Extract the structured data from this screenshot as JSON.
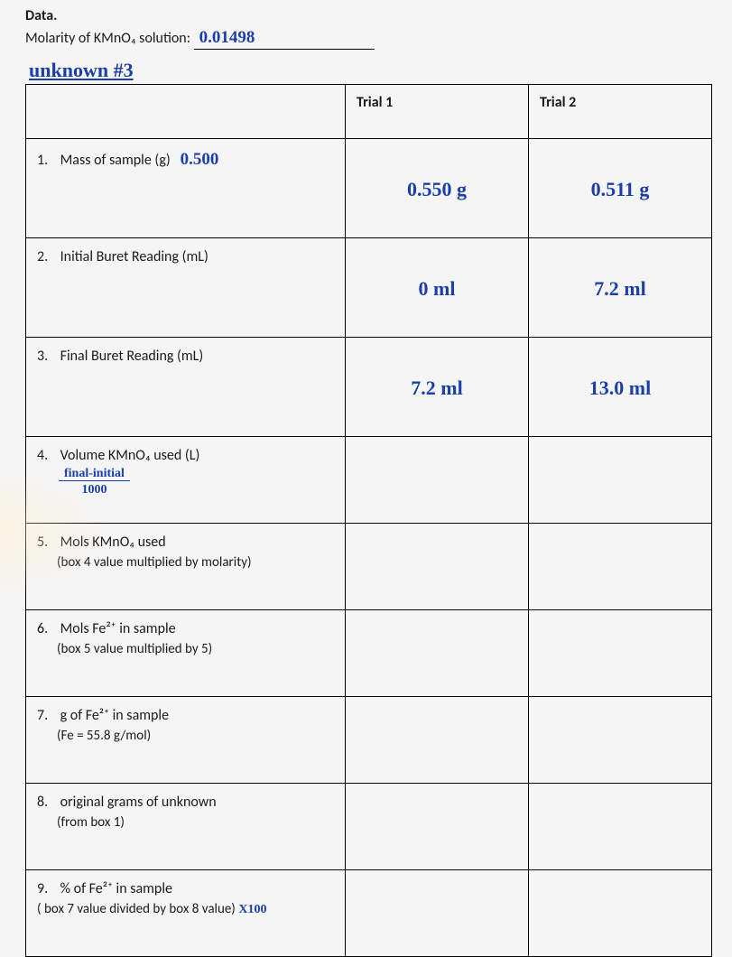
{
  "header": {
    "data_label": "Data.",
    "molarity_label": "Molarity of KMnO₄ solution:",
    "molarity_value": "0.01498",
    "unknown_title": "unknown #3"
  },
  "columns": {
    "trial1": "Trial 1",
    "trial2": "Trial 2"
  },
  "rows": {
    "r1": {
      "num": "1.",
      "label": "Mass of sample (g)",
      "annot": "0.500",
      "t1": "0.550 g",
      "t2": "0.511 g"
    },
    "r2": {
      "num": "2.",
      "label": "Initial Buret Reading (mL)",
      "t1": "0 ml",
      "t2": "7.2 ml"
    },
    "r3": {
      "num": "3.",
      "label": "Final Buret Reading (mL)",
      "t1": "7.2 ml",
      "t2": "13.0 ml"
    },
    "r4": {
      "num": "4.",
      "label": "Volume KMnO₄ used (L)",
      "frac_top": "final-initial",
      "frac_bot": "1000",
      "t1": "",
      "t2": ""
    },
    "r5": {
      "num": "5.",
      "label": "Mols KMnO₄ used",
      "sub": "(box 4 value multiplied by molarity)",
      "t1": "",
      "t2": ""
    },
    "r6": {
      "num": "6.",
      "label_html": "Mols Fe²⁺ in sample",
      "sub": "(box 5 value multiplied by 5)",
      "t1": "",
      "t2": ""
    },
    "r7": {
      "num": "7.",
      "label_html": "g of Fe²⁺ in sample",
      "sub": "(Fe = 55.8 g/mol)",
      "t1": "",
      "t2": ""
    },
    "r8": {
      "num": "8.",
      "label": "original grams of unknown",
      "sub": "(from box 1)",
      "t1": "",
      "t2": ""
    },
    "r9": {
      "num": "9.",
      "label_html": "% of Fe²⁺ in sample",
      "sub_prefix": "( box 7 value divided by box 8 value)",
      "sub_hand": " X100",
      "t1": "",
      "t2": ""
    }
  },
  "style": {
    "handwriting_color": "#1b3ea8",
    "border_color": "#000000",
    "background": "#f5f5f5",
    "font_body": "Calibri",
    "font_hand": "Comic Sans MS"
  }
}
